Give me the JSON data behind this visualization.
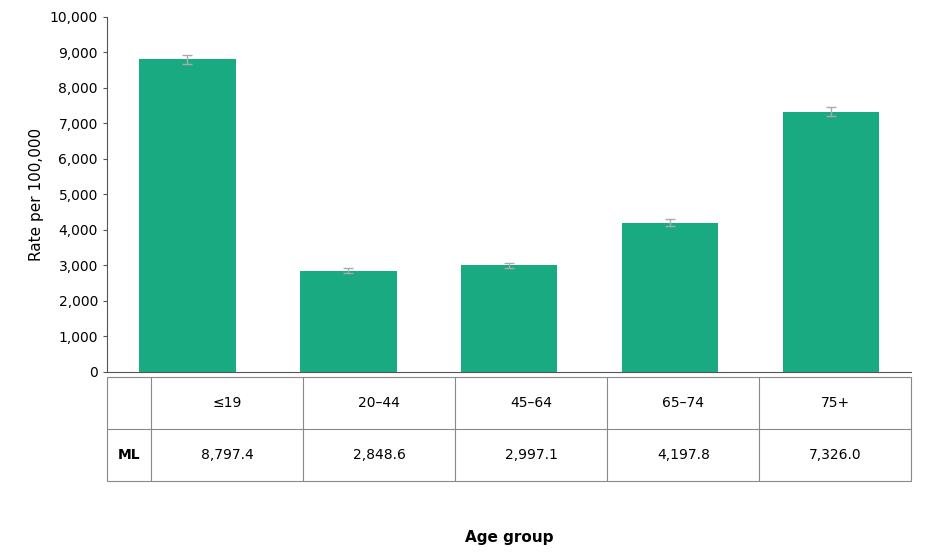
{
  "categories": [
    "≤19",
    "20–44",
    "45–64",
    "65–74",
    "75+"
  ],
  "values": [
    8797.4,
    2848.6,
    2997.1,
    4197.8,
    7326.0
  ],
  "error_bars": [
    120,
    60,
    65,
    100,
    130
  ],
  "bar_color": "#1aaa82",
  "ylabel": "Rate per 100,000",
  "xlabel": "Age group",
  "ylim": [
    0,
    10000
  ],
  "yticks": [
    0,
    1000,
    2000,
    3000,
    4000,
    5000,
    6000,
    7000,
    8000,
    9000,
    10000
  ],
  "table_row_label": "ML",
  "table_values": [
    "8,797.4",
    "2,848.6",
    "2,997.1",
    "4,197.8",
    "7,326.0"
  ],
  "background_color": "#ffffff",
  "error_bar_color": "#aaaaaa",
  "axis_label_fontsize": 11,
  "tick_fontsize": 10,
  "table_fontsize": 10,
  "ylabel_fontsize": 11
}
